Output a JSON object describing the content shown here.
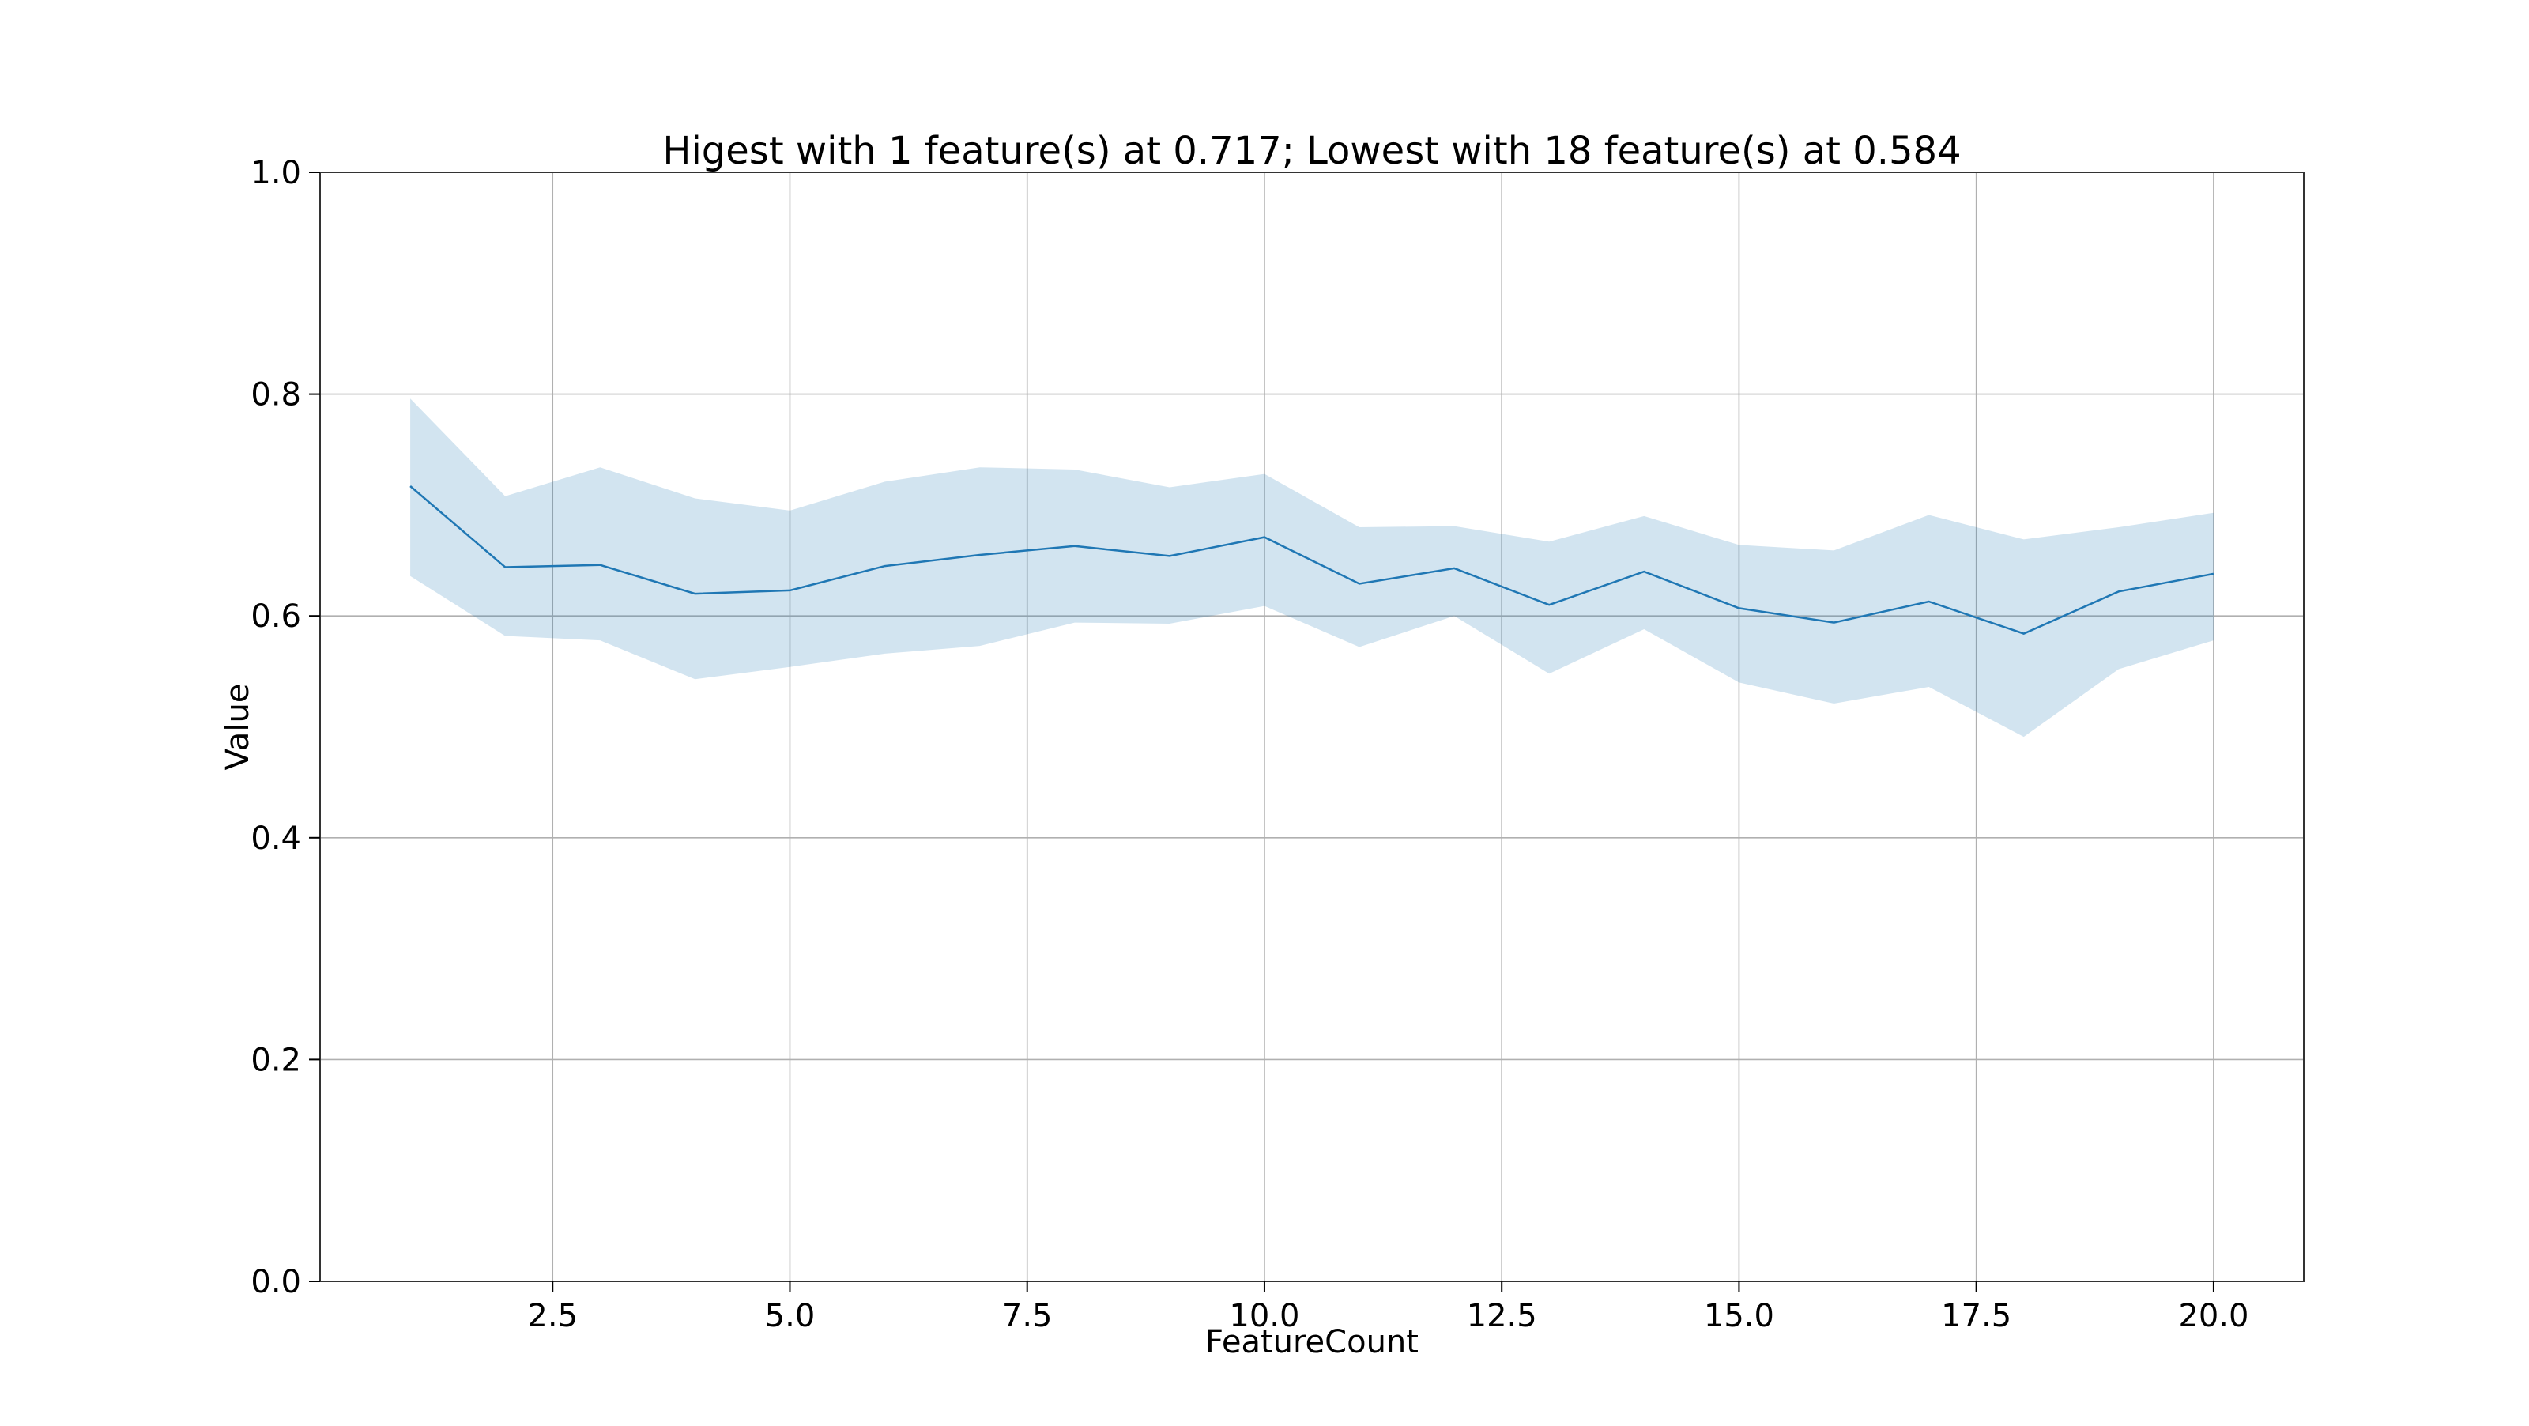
{
  "chart_data": {
    "type": "line",
    "title": "Higest with 1 feature(s) at 0.717; Lowest with 18 feature(s) at 0.584",
    "xlabel": "FeatureCount",
    "ylabel": "Value",
    "xlim": [
      0.05,
      20.95
    ],
    "ylim": [
      0.0,
      1.0
    ],
    "x_ticks": [
      2.5,
      5.0,
      7.5,
      10.0,
      12.5,
      15.0,
      17.5,
      20.0
    ],
    "x_tick_labels": [
      "2.5",
      "5.0",
      "7.5",
      "10.0",
      "12.5",
      "15.0",
      "17.5",
      "20.0"
    ],
    "y_ticks": [
      0.0,
      0.2,
      0.4,
      0.6,
      0.8,
      1.0
    ],
    "y_tick_labels": [
      "0.0",
      "0.2",
      "0.4",
      "0.6",
      "0.8",
      "1.0"
    ],
    "grid": true,
    "x": [
      1,
      2,
      3,
      4,
      5,
      6,
      7,
      8,
      9,
      10,
      11,
      12,
      13,
      14,
      15,
      16,
      17,
      18,
      19,
      20
    ],
    "series": [
      {
        "values": [
          0.717,
          0.644,
          0.646,
          0.62,
          0.623,
          0.645,
          0.655,
          0.663,
          0.654,
          0.671,
          0.629,
          0.643,
          0.61,
          0.64,
          0.607,
          0.594,
          0.613,
          0.584,
          0.622,
          0.638
        ],
        "lower": [
          0.636,
          0.582,
          0.578,
          0.543,
          0.554,
          0.566,
          0.573,
          0.594,
          0.593,
          0.609,
          0.572,
          0.6,
          0.548,
          0.588,
          0.54,
          0.521,
          0.536,
          0.491,
          0.552,
          0.578
        ],
        "upper": [
          0.796,
          0.708,
          0.734,
          0.706,
          0.695,
          0.721,
          0.734,
          0.732,
          0.716,
          0.728,
          0.68,
          0.681,
          0.667,
          0.69,
          0.664,
          0.659,
          0.691,
          0.669,
          0.68,
          0.693
        ]
      }
    ],
    "colors": {
      "line": "#1f77b4",
      "band": "#1f77b4",
      "grid": "#b0b0b0",
      "axes": "#333333"
    }
  }
}
